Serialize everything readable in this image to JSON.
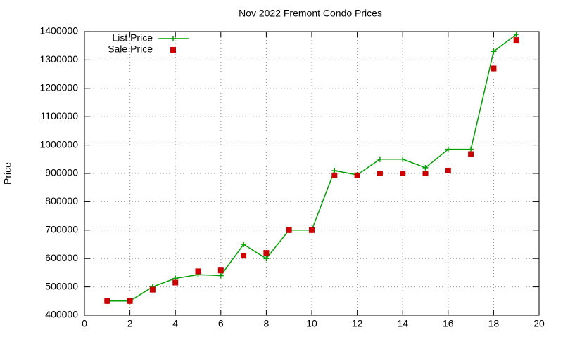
{
  "chart_data": {
    "type": "line",
    "title": "Nov 2022 Fremont Condo Prices",
    "y_label": "Price",
    "x": [
      1,
      2,
      3,
      4,
      5,
      6,
      7,
      8,
      9,
      10,
      11,
      12,
      13,
      14,
      15,
      16,
      17,
      18,
      19
    ],
    "series": [
      {
        "name": "List Price",
        "color": "#00a000",
        "marker": "plus",
        "show_line": true,
        "values": [
          450000,
          450000,
          500000,
          530000,
          543000,
          540000,
          650000,
          600000,
          700000,
          700000,
          910000,
          895000,
          950000,
          950000,
          920000,
          985000,
          985000,
          1330000,
          1390000
        ]
      },
      {
        "name": "Sale Price",
        "color": "#cc0000",
        "marker": "square",
        "show_line": false,
        "values": [
          450000,
          450000,
          490000,
          515000,
          555000,
          558000,
          610000,
          620000,
          700000,
          700000,
          893000,
          893000,
          900000,
          900000,
          900000,
          910000,
          968000,
          1270000,
          1370000
        ]
      }
    ],
    "xlim": [
      0,
      20
    ],
    "xticks": [
      0,
      2,
      4,
      6,
      8,
      10,
      12,
      14,
      16,
      18,
      20
    ],
    "ylim": [
      400000,
      1400000
    ],
    "yticks": [
      400000,
      500000,
      600000,
      700000,
      800000,
      900000,
      1000000,
      1100000,
      1200000,
      1300000,
      1400000
    ],
    "grid": true,
    "legend": "top-left"
  }
}
